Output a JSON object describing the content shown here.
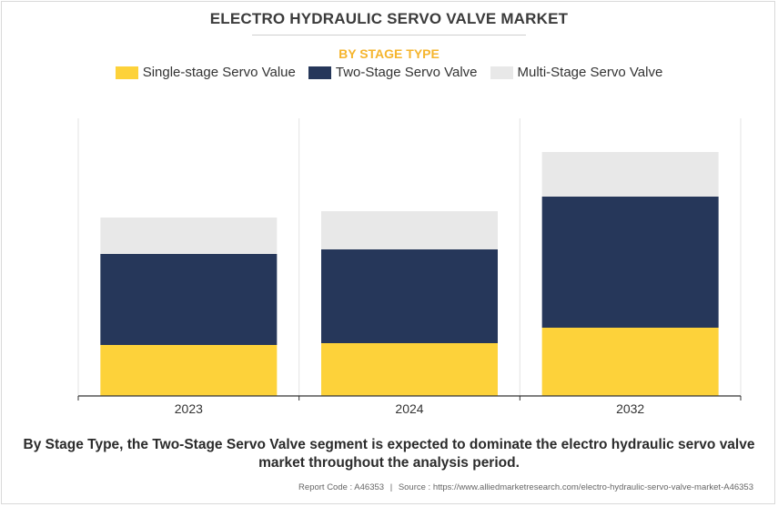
{
  "title": "ELECTRO HYDRAULIC SERVO VALVE MARKET",
  "subtitle": "BY STAGE TYPE",
  "caption": "By Stage Type, the Two-Stage Servo Valve segment is expected to dominate the electro hydraulic servo valve market throughout the analysis period.",
  "footer": {
    "report_code": "Report Code : A46353",
    "separator": "|",
    "source": "Source : https://www.alliedmarketresearch.com/electro-hydraulic-servo-valve-market-A46353"
  },
  "colors": {
    "single": "#fdd23a",
    "two": "#26375a",
    "multi": "#e8e8e8"
  },
  "chart_data": {
    "type": "bar",
    "stacked": true,
    "categories": [
      "2023",
      "2024",
      "2032"
    ],
    "series": [
      {
        "name": "Single-stage Servo Value",
        "color": "#fdd23a",
        "values": [
          56,
          58,
          75
        ]
      },
      {
        "name": "Two-Stage Servo Valve",
        "color": "#26375a",
        "values": [
          100,
          103,
          144
        ]
      },
      {
        "name": "Multi-Stage Servo Valve",
        "color": "#e8e8e8",
        "values": [
          40,
          42,
          49
        ]
      }
    ],
    "ylim": [
      0,
      305
    ],
    "grid": "vertical separators",
    "legend": "top-center",
    "xlabel": "",
    "ylabel": ""
  }
}
